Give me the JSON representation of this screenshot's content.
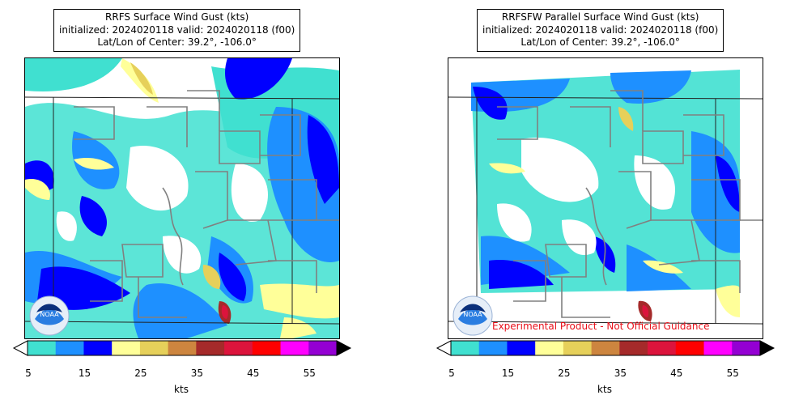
{
  "panels": [
    {
      "title_line1": "RRFS Surface Wind Gust (kts)",
      "title_line2": "initialized: 2024020118 valid: 2024020118 (f00)",
      "title_line3": "Lat/Lon of Center: 39.2°, -106.0°",
      "logo_text": "NOAA",
      "watermark": ""
    },
    {
      "title_line1": "RRFSFW Parallel Surface Wind Gust (kts)",
      "title_line2": "initialized: 2024020118 valid: 2024020118 (f00)",
      "title_line3": "Lat/Lon of Center: 39.2°, -106.0°",
      "logo_text": "NOAA",
      "watermark": "Experimental Product - Not Official Guidance"
    }
  ],
  "colorbar": {
    "colors": [
      "#40e0d0",
      "#1e90ff",
      "#0000ff",
      "#ffff99",
      "#e6d05a",
      "#cd853f",
      "#a52a2a",
      "#dc143c",
      "#ff0000",
      "#ff00ff",
      "#9400d3"
    ],
    "under_color": "#ffffff",
    "over_color": "#000000",
    "tick_labels": [
      "5",
      "15",
      "25",
      "35",
      "45",
      "55"
    ],
    "unit": "kts"
  }
}
